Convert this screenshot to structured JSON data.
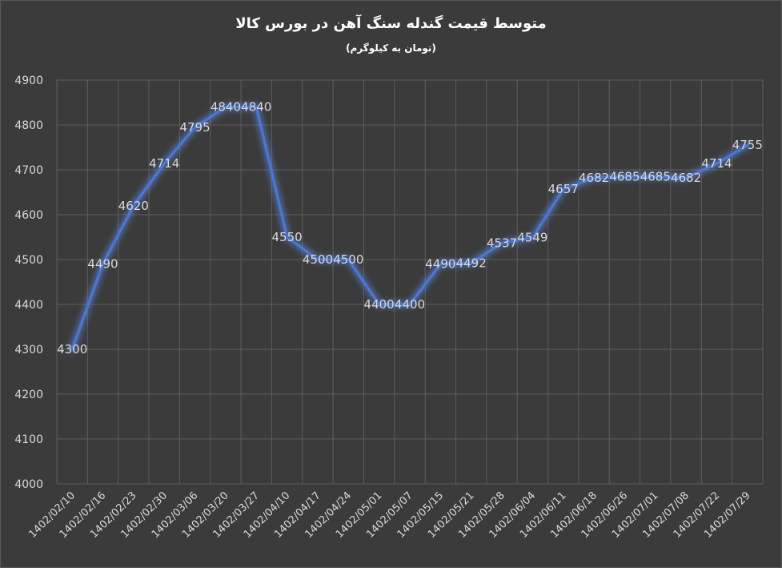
{
  "chart_data": {
    "type": "line",
    "title": "متوسط قیمت گندله سنگ آهن در بورس کالا",
    "subtitle": "(تومان به کیلوگرم)",
    "xlabel": "",
    "ylabel": "",
    "ylim": [
      4000,
      4900
    ],
    "y_ticks": [
      "4000",
      "4100",
      "4200",
      "4300",
      "4400",
      "4500",
      "4600",
      "4700",
      "4800",
      "4900"
    ],
    "grid": true,
    "legend": "none",
    "colors": {
      "background": "#3b3b3b",
      "line": "#4a77d4",
      "glow": "#5b86e5",
      "grid": "#5d5d5d",
      "text": "#d9d9d9",
      "title": "#ffffff"
    },
    "categories": [
      "1402/02/10",
      "1402/02/16",
      "1402/02/23",
      "1402/02/30",
      "1402/03/06",
      "1402/03/20",
      "1402/03/27",
      "1402/04/10",
      "1402/04/17",
      "1402/04/24",
      "1402/05/01",
      "1402/05/07",
      "1402/05/15",
      "1402/05/21",
      "1402/05/28",
      "1402/06/04",
      "1402/06/11",
      "1402/06/18",
      "1402/06/26",
      "1402/07/01",
      "1402/07/08",
      "1402/07/22",
      "1402/07/29"
    ],
    "series": [
      {
        "values": [
          4300,
          4490,
          4620,
          4714,
          4795,
          4840,
          4840,
          4550,
          4500,
          4500,
          4400,
          4400,
          4490,
          4492,
          4537,
          4549,
          4657,
          4682,
          4685,
          4685,
          4682,
          4714,
          4755
        ]
      }
    ]
  }
}
